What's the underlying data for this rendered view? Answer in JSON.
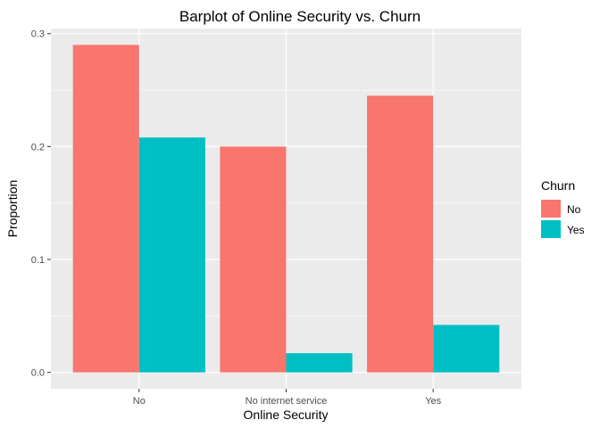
{
  "chart_data": {
    "type": "bar",
    "title": "Barplot of Online Security vs. Churn",
    "xlabel": "Online Security",
    "ylabel": "Proportion",
    "categories": [
      "No",
      "No internet service",
      "Yes"
    ],
    "series": [
      {
        "name": "No",
        "color": "#F8766D",
        "values": [
          0.29,
          0.2,
          0.245
        ]
      },
      {
        "name": "Yes",
        "color": "#00BFC4",
        "values": [
          0.208,
          0.017,
          0.042
        ]
      }
    ],
    "ylim": [
      0,
      0.3
    ],
    "yticks": [
      0.0,
      0.1,
      0.2,
      0.3
    ],
    "ytick_labels": [
      "0.0",
      "0.1",
      "0.2",
      "0.3"
    ],
    "grid": true,
    "legend": {
      "title": "Churn",
      "position": "right"
    },
    "colors": {
      "panel_background": "#EBEBEB",
      "grid": "#FFFFFF"
    }
  }
}
